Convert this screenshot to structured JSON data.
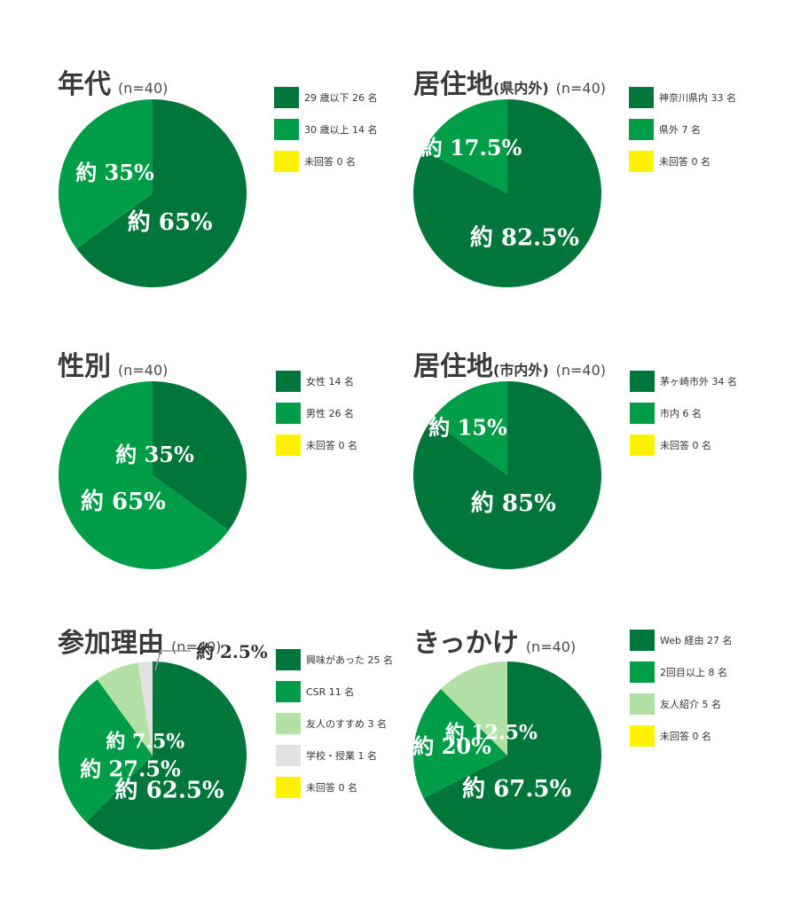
{
  "colors": {
    "dark_green": "#00763a",
    "green": "#009d48",
    "light_green": "#b3e0a5",
    "light_gray": "#e2e2e2",
    "yellow": "#fff200"
  },
  "chart_data": [
    {
      "type": "pie",
      "title": "年代",
      "title_sub": "",
      "n_label": "(n=40)",
      "slices": [
        {
          "label": "29 歳以下 26 名",
          "value": 26,
          "color": "#00763a",
          "pct_label": "約 65%"
        },
        {
          "label": "30 歳以上 14 名",
          "value": 14,
          "color": "#009d48",
          "pct_label": "約 35%"
        },
        {
          "label": "未回答 0 名",
          "value": 0,
          "color": "#fff200",
          "pct_label": ""
        }
      ]
    },
    {
      "type": "pie",
      "title": "居住地",
      "title_sub": "(県内外)",
      "n_label": "(n=40)",
      "slices": [
        {
          "label": "神奈川県内 33 名",
          "value": 33,
          "color": "#00763a",
          "pct_label": "約 82.5%"
        },
        {
          "label": "県外 7 名",
          "value": 7,
          "color": "#009d48",
          "pct_label": "約 17.5%"
        },
        {
          "label": "未回答 0 名",
          "value": 0,
          "color": "#fff200",
          "pct_label": ""
        }
      ]
    },
    {
      "type": "pie",
      "title": "性別",
      "title_sub": "",
      "n_label": "(n=40)",
      "slices": [
        {
          "label": "女性 14 名",
          "value": 14,
          "color": "#00763a",
          "pct_label": "約 35%"
        },
        {
          "label": "男性 26 名",
          "value": 26,
          "color": "#009d48",
          "pct_label": "約 65%"
        },
        {
          "label": "未回答 0 名",
          "value": 0,
          "color": "#fff200",
          "pct_label": ""
        }
      ]
    },
    {
      "type": "pie",
      "title": "居住地",
      "title_sub": "(市内外)",
      "n_label": "(n=40)",
      "slices": [
        {
          "label": "茅ヶ崎市外 34 名",
          "value": 34,
          "color": "#00763a",
          "pct_label": "約 85%"
        },
        {
          "label": "市内 6 名",
          "value": 6,
          "color": "#009d48",
          "pct_label": "約 15%"
        },
        {
          "label": "未回答 0 名",
          "value": 0,
          "color": "#fff200",
          "pct_label": ""
        }
      ]
    },
    {
      "type": "pie",
      "title": "参加理由",
      "title_sub": "",
      "n_label": "(n=40)",
      "slices": [
        {
          "label": "興味があった 25 名",
          "value": 25,
          "color": "#00763a",
          "pct_label": "約 62.5%"
        },
        {
          "label": "CSR 11 名",
          "value": 11,
          "color": "#009d48",
          "pct_label": "約 27.5%"
        },
        {
          "label": "友人のすすめ 3 名",
          "value": 3,
          "color": "#b3e0a5",
          "pct_label": "約 7.5%"
        },
        {
          "label": "学校・授業 1 名",
          "value": 1,
          "color": "#e2e2e2",
          "pct_label": "約 2.5%"
        },
        {
          "label": "未回答 0 名",
          "value": 0,
          "color": "#fff200",
          "pct_label": ""
        }
      ]
    },
    {
      "type": "pie",
      "title": "きっかけ",
      "title_sub": "",
      "n_label": "(n=40)",
      "slices": [
        {
          "label": "Web 経由 27 名",
          "value": 27,
          "color": "#00763a",
          "pct_label": "約 67.5%"
        },
        {
          "label": "2回目以上 8 名",
          "value": 8,
          "color": "#009d48",
          "pct_label": "約 20%"
        },
        {
          "label": "友人紹介 5 名",
          "value": 5,
          "color": "#b3e0a5",
          "pct_label": "約 12.5%"
        },
        {
          "label": "未回答 0 名",
          "value": 0,
          "color": "#fff200",
          "pct_label": ""
        }
      ]
    }
  ]
}
